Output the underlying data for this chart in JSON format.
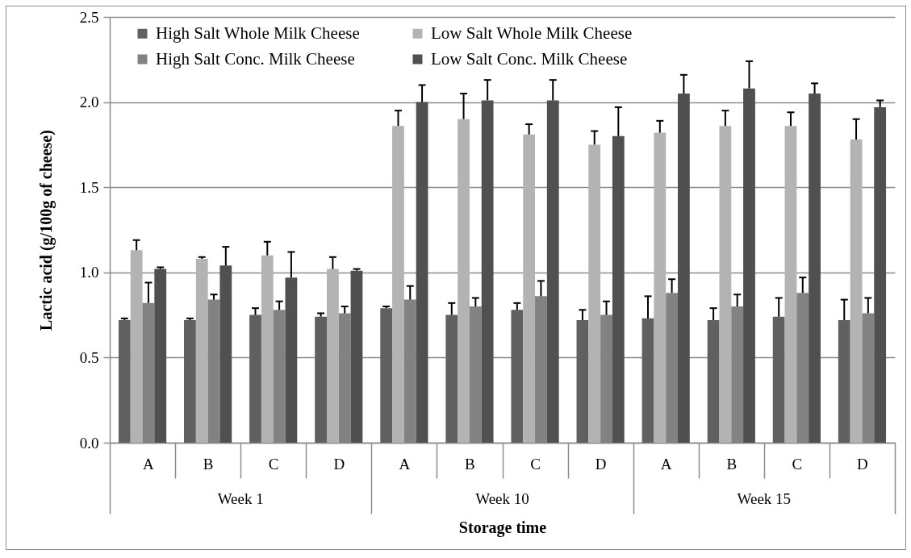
{
  "chart_data": {
    "type": "bar",
    "xlabel": "Storage time",
    "ylabel": "Lactic acid (g/100g of cheese)",
    "categories": [
      "A",
      "B",
      "C",
      "D",
      "A",
      "B",
      "C",
      "D",
      "A",
      "B",
      "C",
      "D"
    ],
    "annotations": [
      "Week 1",
      "Week 10",
      "Week 15"
    ],
    "series": [
      {
        "name": "High Salt Whole Milk Cheese",
        "color": "#606060",
        "values": [
          0.72,
          0.72,
          0.75,
          0.74,
          0.79,
          0.75,
          0.78,
          0.72,
          0.73,
          0.72,
          0.74,
          0.72
        ],
        "errors": [
          [
            0.72,
            0.73
          ],
          [
            0.72,
            0.73
          ],
          [
            0.75,
            0.79
          ],
          [
            0.74,
            0.76
          ],
          [
            0.79,
            0.8
          ],
          [
            0.75,
            0.82
          ],
          [
            0.78,
            0.82
          ],
          [
            0.72,
            0.78
          ],
          [
            0.73,
            0.86
          ],
          [
            0.72,
            0.79
          ],
          [
            0.74,
            0.85
          ],
          [
            0.72,
            0.84
          ]
        ]
      },
      {
        "name": "Low Salt Whole Milk Cheese",
        "color": "#b3b3b3",
        "values": [
          1.13,
          1.08,
          1.1,
          1.02,
          1.86,
          1.9,
          1.81,
          1.75,
          1.82,
          1.86,
          1.86,
          1.78
        ],
        "errors": [
          [
            1.13,
            1.19
          ],
          [
            1.08,
            1.09
          ],
          [
            1.1,
            1.18
          ],
          [
            1.02,
            1.09
          ],
          [
            1.86,
            1.95
          ],
          [
            1.9,
            2.05
          ],
          [
            1.81,
            1.87
          ],
          [
            1.75,
            1.83
          ],
          [
            1.82,
            1.89
          ],
          [
            1.86,
            1.95
          ],
          [
            1.86,
            1.94
          ],
          [
            1.78,
            1.9
          ]
        ]
      },
      {
        "name": "High Salt Conc. Milk Cheese",
        "color": "#828282",
        "values": [
          0.82,
          0.84,
          0.78,
          0.76,
          0.84,
          0.8,
          0.86,
          0.75,
          0.88,
          0.8,
          0.88,
          0.76
        ],
        "errors": [
          [
            0.82,
            0.94
          ],
          [
            0.84,
            0.87
          ],
          [
            0.78,
            0.83
          ],
          [
            0.76,
            0.8
          ],
          [
            0.84,
            0.92
          ],
          [
            0.8,
            0.85
          ],
          [
            0.86,
            0.95
          ],
          [
            0.75,
            0.83
          ],
          [
            0.88,
            0.96
          ],
          [
            0.8,
            0.87
          ],
          [
            0.88,
            0.97
          ],
          [
            0.76,
            0.85
          ]
        ]
      },
      {
        "name": "Low Salt Conc. Milk Cheese",
        "color": "#505050",
        "values": [
          1.02,
          1.04,
          0.97,
          1.01,
          2.0,
          2.01,
          2.01,
          1.8,
          2.05,
          2.08,
          2.05,
          1.97
        ],
        "errors": [
          [
            1.02,
            1.03
          ],
          [
            1.04,
            1.15
          ],
          [
            0.97,
            1.12
          ],
          [
            1.01,
            1.02
          ],
          [
            2.0,
            2.1
          ],
          [
            2.01,
            2.13
          ],
          [
            2.01,
            2.13
          ],
          [
            1.8,
            1.97
          ],
          [
            2.05,
            2.16
          ],
          [
            2.08,
            2.24
          ],
          [
            2.05,
            2.11
          ],
          [
            1.97,
            2.01
          ]
        ]
      }
    ],
    "ylim": [
      0,
      2.5
    ],
    "yticks": [
      {
        "value": 0,
        "label": "0.0"
      },
      0.5,
      {
        "value": 1,
        "label": "1.0"
      },
      1.5,
      {
        "value": 2,
        "label": "2.0"
      },
      2.5
    ],
    "grid": "y",
    "legend": "top left"
  }
}
